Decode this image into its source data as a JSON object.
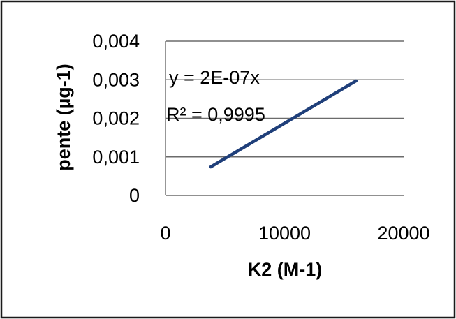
{
  "chart_data": {
    "type": "line",
    "title": "",
    "xlabel": "K2 (M-1)",
    "ylabel": "pente (µg-1)",
    "xlim": [
      0,
      20000
    ],
    "ylim": [
      0,
      0.004
    ],
    "x_ticks": [
      {
        "value": 0,
        "label": "0"
      },
      {
        "value": 10000,
        "label": "10000"
      },
      {
        "value": 20000,
        "label": "20000"
      }
    ],
    "y_ticks": [
      {
        "value": 0,
        "label": "0"
      },
      {
        "value": 0.001,
        "label": "0,001"
      },
      {
        "value": 0.002,
        "label": "0,002"
      },
      {
        "value": 0.003,
        "label": "0,003"
      },
      {
        "value": 0.004,
        "label": "0,004"
      }
    ],
    "grid": {
      "horizontal": true,
      "vertical": false
    },
    "legend": "none",
    "series": [
      {
        "color": "#1f3f7a",
        "x": [
          3800,
          16000
        ],
        "y": [
          0.00074,
          0.00297
        ]
      }
    ],
    "annotations": [
      {
        "text": "y = 2E-07x"
      },
      {
        "text": "R² = 0,9995"
      }
    ]
  }
}
